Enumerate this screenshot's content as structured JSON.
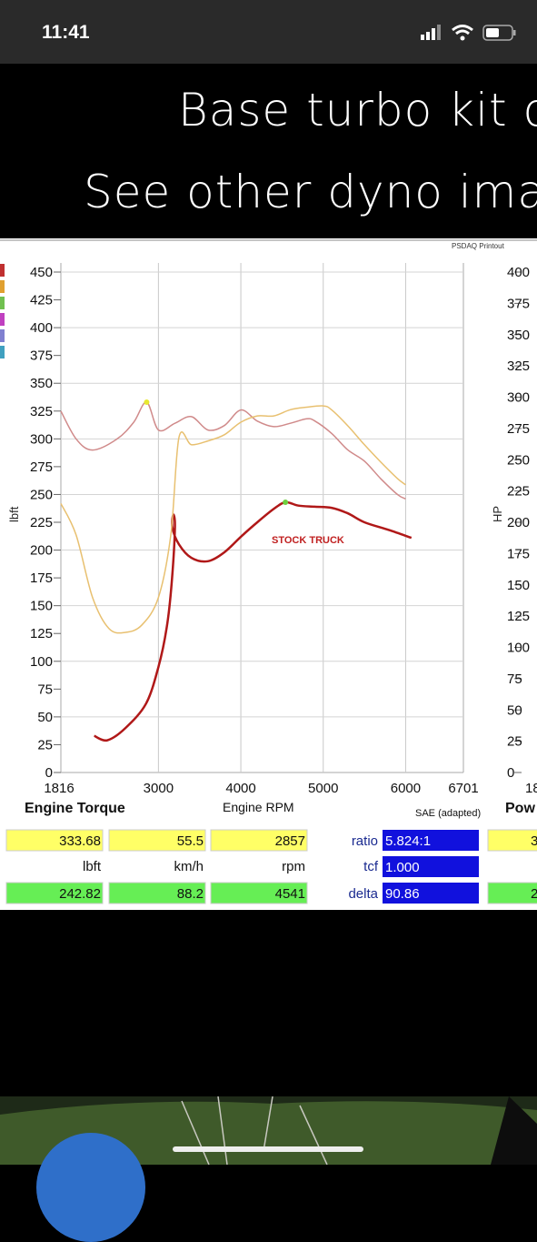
{
  "status_bar": {
    "time": "11:41"
  },
  "caption": {
    "line1": "Base turbo kit or",
    "line2": "See other dyno imag"
  },
  "dyno": {
    "printout_label": "PSDAQ Printout",
    "x_axis_title": "Engine RPM",
    "torque_panel_title": "Engine Torque",
    "power_panel_title": "Pow",
    "correction_label": "SAE (adapted)",
    "annotation": "STOCK TRUCK",
    "readouts": {
      "row1": [
        "333.68",
        "55.5",
        "2857"
      ],
      "units": [
        "lbft",
        "km/h",
        "rpm"
      ],
      "row3": [
        "242.82",
        "88.2",
        "4541"
      ],
      "ratio_label": "ratio",
      "ratio_value": "5.824:1",
      "tcf_label": "tcf",
      "tcf_value": "1.000",
      "delta_label": "delta",
      "delta_value": "90.86",
      "right_partial_top": "3",
      "right_partial_bottom": "2"
    },
    "colors": {
      "stock_torque": "#b01818",
      "turbo_torque": "#d08a8a",
      "turbo_power": "#e8c070",
      "marker": "#e8e830"
    }
  },
  "chart_data": {
    "type": "line",
    "xlabel": "Engine RPM",
    "ylabel": "lbft",
    "y2label": "HP",
    "xlim": [
      1816,
      6701
    ],
    "ylim": [
      0,
      460
    ],
    "y2lim": [
      0,
      400
    ],
    "x_ticks": [
      "1816",
      "3000",
      "4000",
      "5000",
      "6000",
      "6701"
    ],
    "y_ticks": [
      "0",
      "25",
      "50",
      "75",
      "100",
      "125",
      "150",
      "175",
      "200",
      "225",
      "250",
      "275",
      "300",
      "325",
      "350",
      "375",
      "400",
      "425",
      "450"
    ],
    "y2_ticks": [
      "0",
      "25",
      "50",
      "75",
      "100",
      "125",
      "150",
      "175",
      "200",
      "225",
      "250",
      "275",
      "300",
      "325",
      "350",
      "375",
      "400"
    ],
    "right_x_tick_partial": "18",
    "grid": true,
    "series": [
      {
        "name": "STOCK TRUCK",
        "axis": "left",
        "x": [
          2220,
          2380,
          2600,
          2850,
          3000,
          3100,
          3160,
          3200,
          3180,
          3170,
          3250,
          3400,
          3600,
          3800,
          4000,
          4200,
          4400,
          4541,
          4700,
          4900,
          5100,
          5300,
          5500,
          5800,
          6070
        ],
        "y": [
          33,
          29,
          40,
          62,
          95,
          130,
          170,
          220,
          232,
          220,
          205,
          193,
          190,
          198,
          212,
          225,
          237,
          243,
          240,
          239,
          238,
          233,
          225,
          218,
          211
        ]
      },
      {
        "name": "",
        "axis": "left",
        "x": [
          1816,
          2000,
          2200,
          2500,
          2700,
          2857,
          3000,
          3200,
          3400,
          3600,
          3800,
          4000,
          4200,
          4400,
          4600,
          4800,
          4900,
          5100,
          5300,
          5500,
          5700,
          5900,
          6000
        ],
        "y": [
          325,
          300,
          290,
          300,
          315,
          333,
          308,
          314,
          320,
          308,
          312,
          326,
          316,
          311,
          314,
          318,
          316,
          305,
          290,
          280,
          264,
          250,
          246
        ]
      },
      {
        "name": "",
        "axis": "right",
        "x": [
          1816,
          2000,
          2200,
          2400,
          2600,
          2800,
          3000,
          3150,
          3250,
          3400,
          3600,
          3800,
          4000,
          4200,
          4400,
          4600,
          4800,
          5000,
          5100,
          5300,
          5500,
          5700,
          5900,
          6000
        ],
        "y": [
          215,
          190,
          140,
          115,
          112,
          118,
          140,
          190,
          268,
          262,
          265,
          270,
          280,
          285,
          285,
          290,
          292,
          293,
          290,
          277,
          262,
          248,
          235,
          230
        ]
      }
    ]
  }
}
